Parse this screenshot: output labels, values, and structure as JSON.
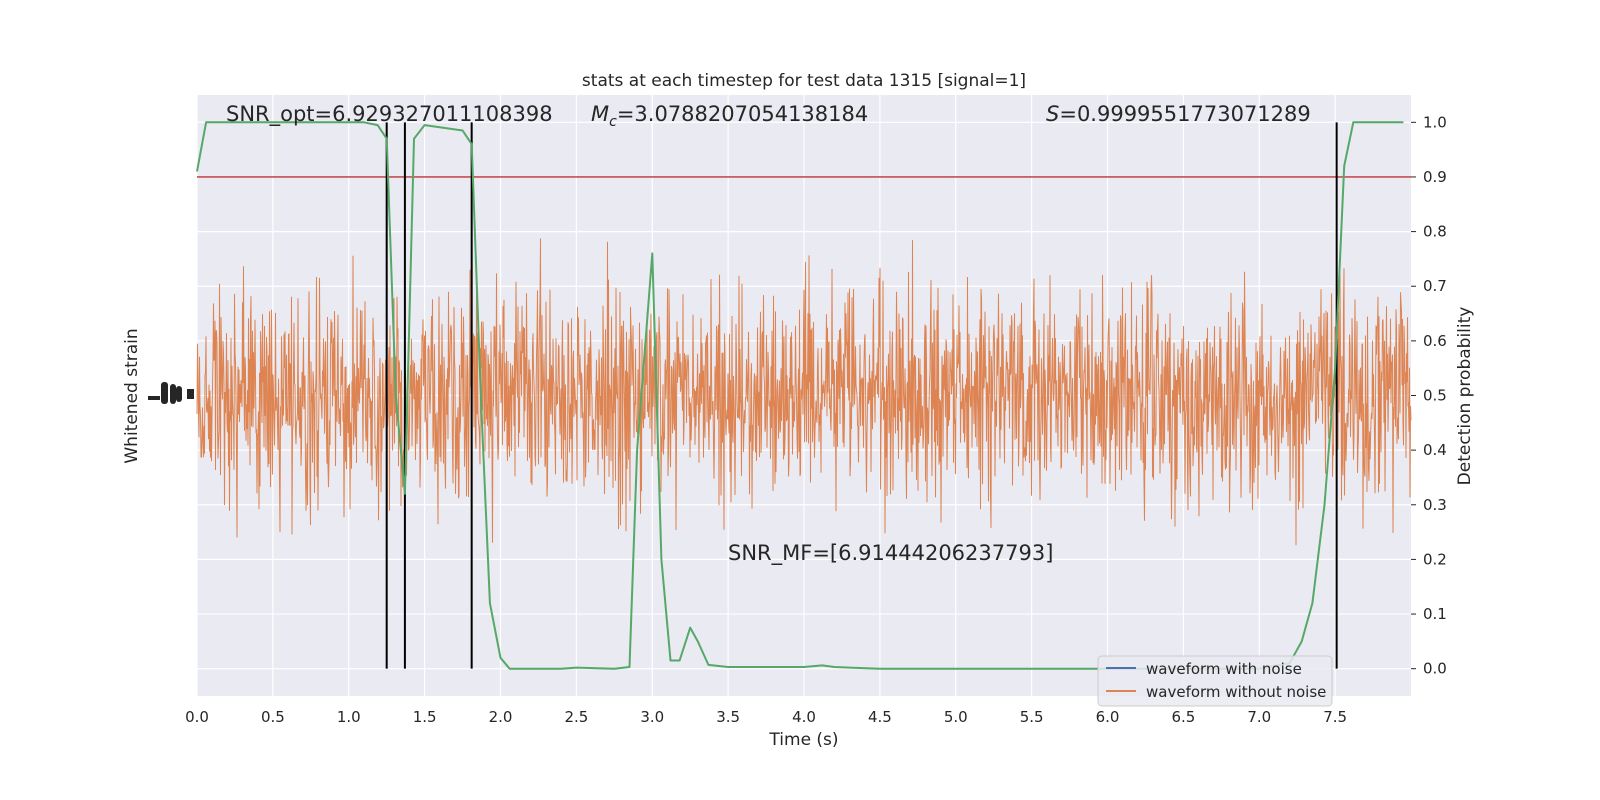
{
  "chart_data": {
    "type": "line",
    "title": "stats at each timestep for test data 1315 [signal=1]",
    "xlabel": "Time (s)",
    "ylabel_left": "Whitened strain",
    "ylabel_right": "Detection probability",
    "xlim": [
      0,
      8
    ],
    "ylim_right": [
      -0.05,
      1.05
    ],
    "grid": true,
    "legend_position": "lower-right",
    "x_ticks": [
      "0.0",
      "0.5",
      "1.0",
      "1.5",
      "2.0",
      "2.5",
      "3.0",
      "3.5",
      "4.0",
      "4.5",
      "5.0",
      "5.5",
      "6.0",
      "6.5",
      "7.0",
      "7.5"
    ],
    "y_ticks_right": [
      "0.0",
      "0.1",
      "0.2",
      "0.3",
      "0.4",
      "0.5",
      "0.6",
      "0.7",
      "0.8",
      "0.9",
      "1.0"
    ],
    "annotations": {
      "snr_opt": "SNR_opt=6.929327011108398",
      "mc_symbol": "M",
      "mc_sub": "c",
      "mc_value": "=3.0788207054138184",
      "s_symbol": "S",
      "s_value": "=0.9999551773071289",
      "snr_mf": "SNR_MF=[6.91444206237793]"
    },
    "threshold": 0.9,
    "detection_marks_x": [
      1.25,
      1.37,
      1.81,
      7.51
    ],
    "series": [
      {
        "name": "waveform with noise",
        "color": "#4c72b0"
      },
      {
        "name": "waveform without noise",
        "color": "#dd8452"
      }
    ],
    "colors": {
      "detection_probability": "#55a868",
      "threshold_line": "#c44e52",
      "marks": "#000000",
      "plot_background": "#eaeaf2"
    },
    "detection_probability": {
      "x": [
        0.0,
        0.06,
        0.12,
        0.25,
        0.5,
        0.75,
        1.0,
        1.1,
        1.19,
        1.25,
        1.31,
        1.37,
        1.43,
        1.5,
        1.75,
        1.81,
        1.87,
        1.93,
        2.0,
        2.06,
        2.25,
        2.4,
        2.5,
        2.75,
        2.85,
        2.9,
        3.0,
        3.06,
        3.12,
        3.18,
        3.25,
        3.3,
        3.37,
        3.5,
        3.75,
        4.0,
        4.12,
        4.2,
        4.3,
        4.5,
        5.0,
        5.5,
        6.0,
        6.5,
        7.0,
        7.2,
        7.28,
        7.35,
        7.43,
        7.5,
        7.56,
        7.62,
        7.75,
        7.95
      ],
      "y": [
        0.91,
        1.0,
        1.0,
        1.0,
        1.0,
        1.0,
        1.0,
        1.0,
        0.995,
        0.97,
        0.5,
        0.32,
        0.97,
        0.995,
        0.985,
        0.96,
        0.5,
        0.12,
        0.02,
        0.0,
        0.0,
        0.0,
        0.002,
        0.0,
        0.003,
        0.4,
        0.76,
        0.2,
        0.015,
        0.015,
        0.075,
        0.05,
        0.007,
        0.003,
        0.003,
        0.003,
        0.006,
        0.003,
        0.002,
        0.0,
        0.0,
        0.0,
        0.0,
        0.0,
        0.0,
        0.01,
        0.05,
        0.12,
        0.3,
        0.55,
        0.92,
        1.0,
        1.0,
        1.0
      ]
    }
  }
}
